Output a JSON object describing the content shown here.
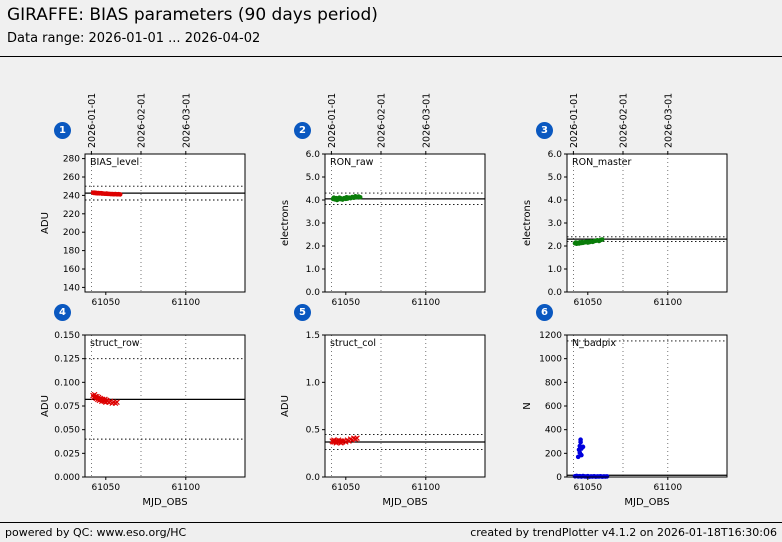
{
  "header": {
    "title": "GIRAFFE: BIAS parameters (90 days period)",
    "subtitle": "Data range: 2026-01-01 ... 2026-04-02"
  },
  "footer": {
    "left": "powered by QC: www.eso.org/HC",
    "right": "created by trendPlotter v4.1.2 on 2026-01-18T16:30:06"
  },
  "colors": {
    "background": "#f0f0f0",
    "badge": "#0a58c0",
    "red": "#dd0000",
    "green": "#0a7d0a",
    "blue": "#0000dd"
  },
  "axes": {
    "xlabel": "MJD_OBS",
    "xlim": [
      61037,
      61137
    ],
    "xticks": {
      "values": [
        61050,
        61100
      ],
      "labels": [
        "61050",
        "61100"
      ]
    },
    "top_dates": {
      "values": [
        61041,
        61072,
        61100
      ],
      "labels": [
        "2026-01-01",
        "2026-02-01",
        "2026-03-01"
      ]
    }
  },
  "chart_data": [
    {
      "type": "scatter",
      "badge": "1",
      "label": "BIAS_level",
      "ylabel": "ADU",
      "marker": "circle",
      "color_key": "red",
      "ylim": [
        135,
        285
      ],
      "yticks": {
        "values": [
          140,
          160,
          180,
          200,
          220,
          240,
          260,
          280
        ],
        "labels": [
          "140",
          "160",
          "180",
          "200",
          "220",
          "240",
          "260",
          "280"
        ]
      },
      "solid_line": 242.5,
      "dotted_lines": [
        250,
        235
      ],
      "points": [
        [
          61042,
          243.0
        ],
        [
          61042.5,
          242.7
        ],
        [
          61043,
          242.9
        ],
        [
          61043.5,
          242.5
        ],
        [
          61044,
          242.7
        ],
        [
          61044.5,
          242.4
        ],
        [
          61045,
          242.3
        ],
        [
          61045.5,
          242.6
        ],
        [
          61046,
          242.2
        ],
        [
          61047,
          242.4
        ],
        [
          61047.5,
          242.0
        ],
        [
          61048,
          242.1
        ],
        [
          61049,
          241.9
        ],
        [
          61050,
          241.8
        ],
        [
          61050.5,
          242.0
        ],
        [
          61051,
          241.7
        ],
        [
          61052,
          241.6
        ],
        [
          61053,
          241.5
        ],
        [
          61054,
          241.4
        ],
        [
          61055,
          241.3
        ],
        [
          61056,
          241.4
        ],
        [
          61057,
          241.2
        ],
        [
          61058,
          241.3
        ],
        [
          61059,
          241.1
        ]
      ]
    },
    {
      "type": "scatter",
      "badge": "2",
      "label": "RON_raw",
      "ylabel": "electrons",
      "marker": "circle",
      "color_key": "green",
      "ylim": [
        0,
        6
      ],
      "yticks": {
        "values": [
          0,
          1,
          2,
          3,
          4,
          5,
          6
        ],
        "labels": [
          "0.0",
          "1.0",
          "2.0",
          "3.0",
          "4.0",
          "5.0",
          "6.0"
        ]
      },
      "solid_line": 4.05,
      "dotted_lines": [
        4.3,
        3.8
      ],
      "points": [
        [
          61042,
          4.05
        ],
        [
          61042.5,
          4.1
        ],
        [
          61043,
          4.03
        ],
        [
          61044,
          4.08
        ],
        [
          61044.5,
          4.0
        ],
        [
          61045,
          4.06
        ],
        [
          61046,
          4.1
        ],
        [
          61046.5,
          4.04
        ],
        [
          61047,
          4.07
        ],
        [
          61048,
          4.02
        ],
        [
          61049,
          4.08
        ],
        [
          61050,
          4.05
        ],
        [
          61050.5,
          4.12
        ],
        [
          61051,
          4.06
        ],
        [
          61052,
          4.1
        ],
        [
          61053,
          4.08
        ],
        [
          61054,
          4.13
        ],
        [
          61055,
          4.1
        ],
        [
          61056,
          4.16
        ],
        [
          61057,
          4.12
        ],
        [
          61058,
          4.15
        ],
        [
          61059,
          4.12
        ]
      ]
    },
    {
      "type": "scatter",
      "badge": "3",
      "label": "RON_master",
      "ylabel": "electrons",
      "marker": "circle",
      "color_key": "green",
      "ylim": [
        0,
        6
      ],
      "yticks": {
        "values": [
          0,
          1,
          2,
          3,
          4,
          5,
          6
        ],
        "labels": [
          "0.0",
          "1.0",
          "2.0",
          "3.0",
          "4.0",
          "5.0",
          "6.0"
        ]
      },
      "solid_line": 2.3,
      "dotted_lines": [
        2.4,
        2.2
      ],
      "points": [
        [
          61042,
          2.12
        ],
        [
          61042.5,
          2.15
        ],
        [
          61043,
          2.1
        ],
        [
          61044,
          2.14
        ],
        [
          61044.5,
          2.11
        ],
        [
          61045,
          2.16
        ],
        [
          61046,
          2.13
        ],
        [
          61046.5,
          2.17
        ],
        [
          61047,
          2.14
        ],
        [
          61048,
          2.16
        ],
        [
          61049,
          2.18
        ],
        [
          61050,
          2.15
        ],
        [
          61050.5,
          2.19
        ],
        [
          61051,
          2.17
        ],
        [
          61052,
          2.2
        ],
        [
          61053,
          2.18
        ],
        [
          61054,
          2.21
        ],
        [
          61055,
          2.23
        ],
        [
          61056,
          2.25
        ],
        [
          61057,
          2.22
        ],
        [
          61058,
          2.26
        ],
        [
          61059,
          2.28
        ]
      ]
    },
    {
      "type": "scatter",
      "badge": "4",
      "label": "struct_row",
      "ylabel": "ADU",
      "marker": "x",
      "color_key": "red",
      "ylim": [
        0,
        0.15
      ],
      "yticks": {
        "values": [
          0,
          0.025,
          0.05,
          0.075,
          0.1,
          0.125,
          0.15
        ],
        "labels": [
          "0.000",
          "0.025",
          "0.050",
          "0.075",
          "0.100",
          "0.125",
          "0.150"
        ]
      },
      "solid_line": 0.082,
      "dotted_lines": [
        0.125,
        0.04
      ],
      "points": [
        [
          61042,
          0.086
        ],
        [
          61042.5,
          0.084
        ],
        [
          61043,
          0.087
        ],
        [
          61043.5,
          0.085
        ],
        [
          61044,
          0.083
        ],
        [
          61044.5,
          0.085
        ],
        [
          61045,
          0.082
        ],
        [
          61045.5,
          0.084
        ],
        [
          61046,
          0.081
        ],
        [
          61046.5,
          0.083
        ],
        [
          61047,
          0.082
        ],
        [
          61047.5,
          0.08
        ],
        [
          61048,
          0.082
        ],
        [
          61048.5,
          0.081
        ],
        [
          61049,
          0.08
        ],
        [
          61049.5,
          0.082
        ],
        [
          61050,
          0.079
        ],
        [
          61050.5,
          0.081
        ],
        [
          61051,
          0.08
        ],
        [
          61052,
          0.079
        ],
        [
          61053,
          0.08
        ],
        [
          61054,
          0.078
        ],
        [
          61055,
          0.079
        ],
        [
          61056,
          0.078
        ],
        [
          61057,
          0.079
        ]
      ]
    },
    {
      "type": "scatter",
      "badge": "5",
      "label": "struct_col",
      "ylabel": "ADU",
      "marker": "x",
      "color_key": "red",
      "ylim": [
        0,
        1.5
      ],
      "yticks": {
        "values": [
          0,
          0.5,
          1,
          1.5
        ],
        "labels": [
          "0.0",
          "0.5",
          "1.0",
          "1.5"
        ]
      },
      "solid_line": 0.37,
      "dotted_lines": [
        0.45,
        0.29
      ],
      "points": [
        [
          61041.5,
          0.38
        ],
        [
          61042,
          0.37
        ],
        [
          61042.5,
          0.39
        ],
        [
          61043,
          0.37
        ],
        [
          61043.5,
          0.38
        ],
        [
          61044,
          0.36
        ],
        [
          61044.5,
          0.38
        ],
        [
          61045,
          0.37
        ],
        [
          61045.5,
          0.39
        ],
        [
          61046,
          0.37
        ],
        [
          61046.5,
          0.38
        ],
        [
          61047,
          0.36
        ],
        [
          61047.5,
          0.38
        ],
        [
          61048,
          0.37
        ],
        [
          61049,
          0.38
        ],
        [
          61050,
          0.37
        ],
        [
          61051,
          0.39
        ],
        [
          61052,
          0.38
        ],
        [
          61053,
          0.4
        ],
        [
          61054,
          0.39
        ],
        [
          61055,
          0.41
        ],
        [
          61056,
          0.4
        ],
        [
          61057,
          0.41
        ]
      ]
    },
    {
      "type": "scatter",
      "badge": "6",
      "label": "N_badpix",
      "ylabel": "N",
      "marker": "circle",
      "color_key": "blue",
      "ylim": [
        0,
        1200
      ],
      "yticks": {
        "values": [
          0,
          200,
          400,
          600,
          800,
          1000,
          1200
        ],
        "labels": [
          "0",
          "200",
          "400",
          "600",
          "800",
          "1000",
          "1200"
        ]
      },
      "solid_line": 15,
      "dotted_lines": [
        1150
      ],
      "points": [
        [
          61044,
          170
        ],
        [
          61044.5,
          230
        ],
        [
          61045,
          205
        ],
        [
          61045,
          262
        ],
        [
          61045.5,
          295
        ],
        [
          61045.5,
          315
        ],
        [
          61046,
          240
        ],
        [
          61046,
          185
        ],
        [
          61047,
          255
        ],
        [
          61042,
          6
        ],
        [
          61043,
          9
        ],
        [
          61044,
          5
        ],
        [
          61045,
          7
        ],
        [
          61046,
          4
        ],
        [
          61047,
          8
        ],
        [
          61048,
          5
        ],
        [
          61049,
          4
        ],
        [
          61050,
          7
        ],
        [
          61051,
          3
        ],
        [
          61052,
          5
        ],
        [
          61053,
          4
        ],
        [
          61054,
          6
        ],
        [
          61055,
          3
        ],
        [
          61056,
          5
        ],
        [
          61057,
          4
        ],
        [
          61058,
          6
        ],
        [
          61059,
          3
        ],
        [
          61060,
          5
        ],
        [
          61061,
          4
        ],
        [
          61062,
          5
        ]
      ]
    }
  ]
}
